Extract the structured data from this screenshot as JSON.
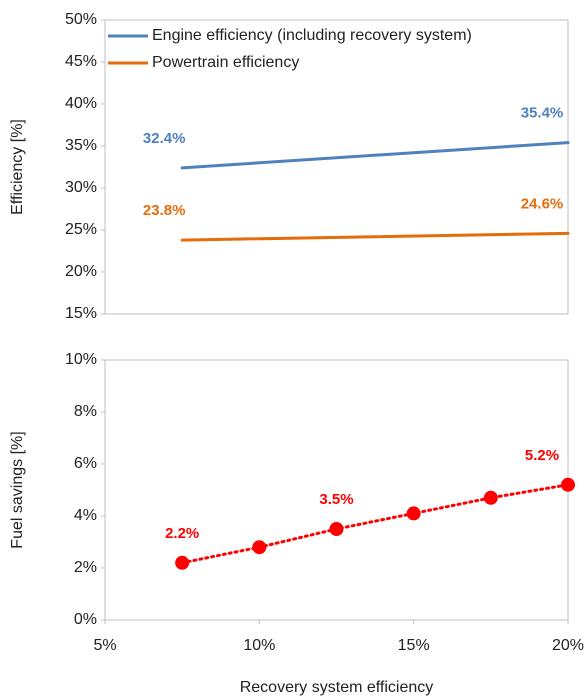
{
  "chart_data": [
    {
      "type": "line",
      "ylabel": "Efficiency [%]",
      "xlim": [
        5,
        20
      ],
      "ylim": [
        15,
        50
      ],
      "yticks": [
        {
          "value": 15,
          "label": "15%"
        },
        {
          "value": 20,
          "label": "20%"
        },
        {
          "value": 25,
          "label": "25%"
        },
        {
          "value": 30,
          "label": "30%"
        },
        {
          "value": 35,
          "label": "35%"
        },
        {
          "value": 40,
          "label": "40%"
        },
        {
          "value": 45,
          "label": "45%"
        },
        {
          "value": 50,
          "label": "50%"
        }
      ],
      "legend": "upper left",
      "series": [
        {
          "name": "Engine efficiency (including recovery system)",
          "color": "#4f81bd",
          "x": [
            7.5,
            20
          ],
          "values": [
            32.4,
            35.4
          ],
          "value_labels": [
            "32.4%",
            "35.4%"
          ]
        },
        {
          "name": "Powertrain efficiency",
          "color": "#e46c0a",
          "x": [
            7.5,
            20
          ],
          "values": [
            23.8,
            24.6
          ],
          "value_labels": [
            "23.8%",
            "24.6%"
          ]
        }
      ]
    },
    {
      "type": "line",
      "ylabel": "Fuel savings [%]",
      "xlabel": "Recovery  system efficiency",
      "xlim": [
        5,
        20
      ],
      "xticks": [
        {
          "value": 5,
          "label": "5%"
        },
        {
          "value": 10,
          "label": "10%"
        },
        {
          "value": 15,
          "label": "15%"
        },
        {
          "value": 20,
          "label": "20%"
        }
      ],
      "ylim": [
        0,
        10
      ],
      "yticks": [
        {
          "value": 0,
          "label": "0%"
        },
        {
          "value": 2,
          "label": "2%"
        },
        {
          "value": 4,
          "label": "4%"
        },
        {
          "value": 6,
          "label": "6%"
        },
        {
          "value": 8,
          "label": "8%"
        },
        {
          "value": 10,
          "label": "10%"
        }
      ],
      "series": [
        {
          "color": "#ff0000",
          "line_style": "dotted",
          "marker": "circle",
          "x": [
            7.5,
            10,
            12.5,
            15,
            17.5,
            20
          ],
          "values": [
            2.2,
            2.8,
            3.5,
            4.1,
            4.7,
            5.2
          ],
          "value_labels": [
            "2.2%",
            null,
            "3.5%",
            null,
            null,
            "5.2%"
          ]
        }
      ]
    }
  ]
}
